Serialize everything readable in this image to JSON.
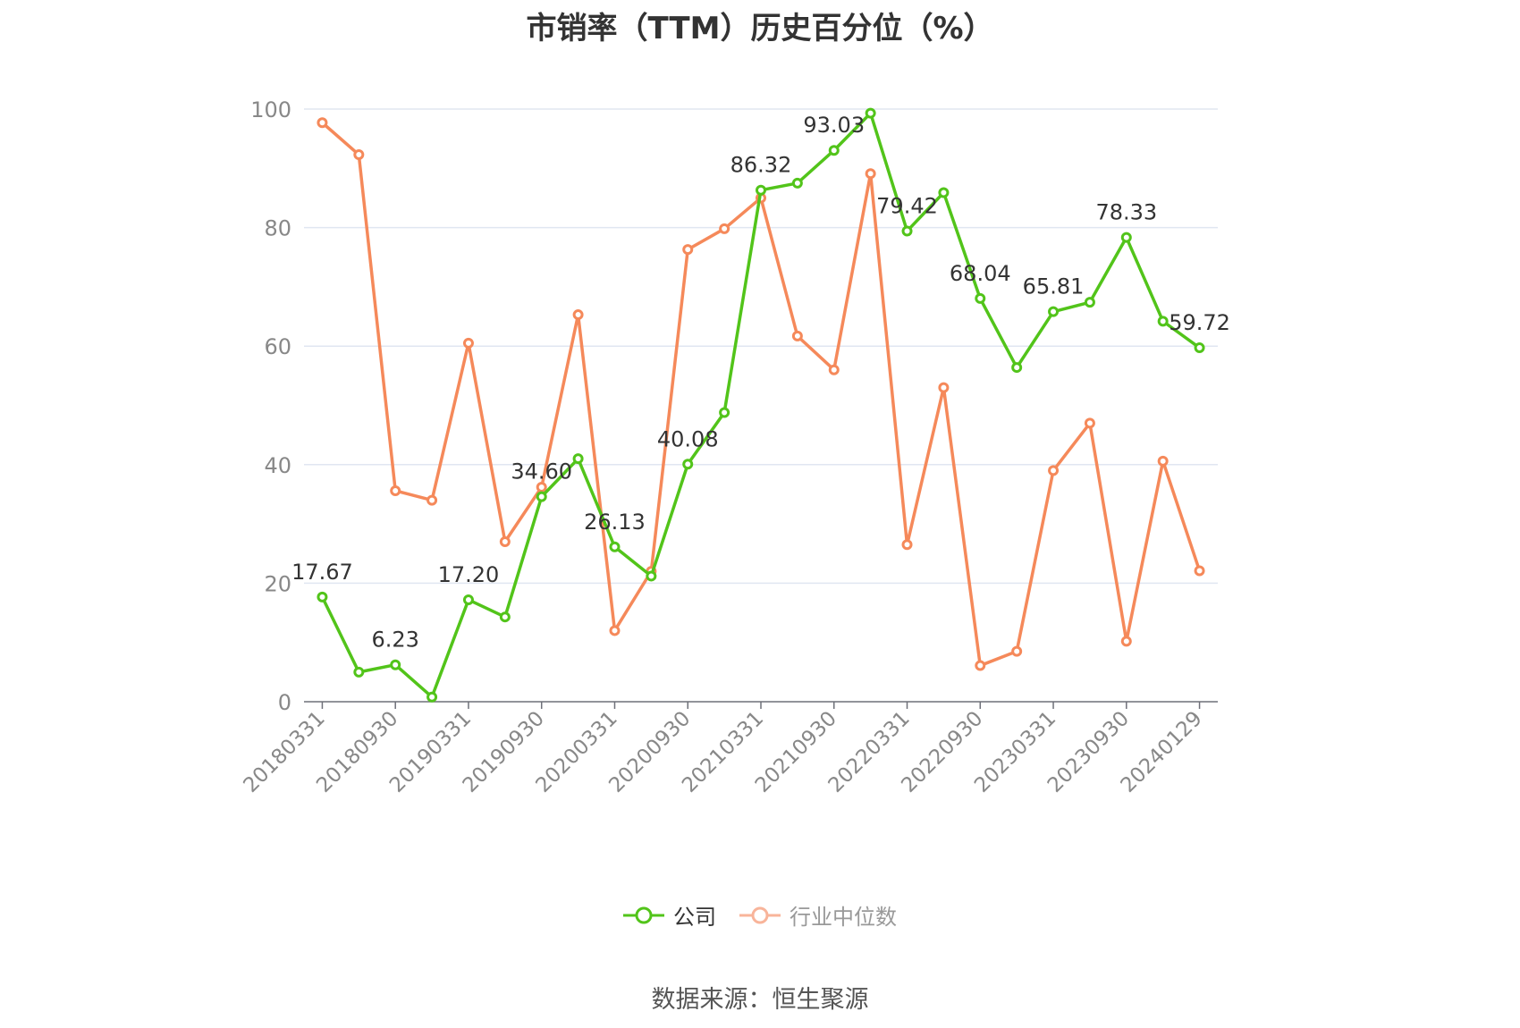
{
  "chart_data": {
    "type": "line",
    "title": "市销率（TTM）历史百分位（%）",
    "source": "数据来源：恒生聚源",
    "ylim": [
      0,
      100
    ],
    "yticks": [
      0,
      20,
      40,
      60,
      80,
      100
    ],
    "grid": true,
    "legend_position": "bottom-center",
    "x": [
      "20180331",
      "20180630",
      "20180930",
      "20181231",
      "20190331",
      "20190630",
      "20190930",
      "20191231",
      "20200331",
      "20200630",
      "20200930",
      "20201231",
      "20210331",
      "20210630",
      "20210930",
      "20211231",
      "20220331",
      "20220630",
      "20220930",
      "20221231",
      "20230331",
      "20230630",
      "20230930",
      "20231231",
      "20240129"
    ],
    "x_tick_labels": [
      "20180331",
      "20180930",
      "20190331",
      "20190930",
      "20200331",
      "20200930",
      "20210331",
      "20210930",
      "20220331",
      "20220930",
      "20230331",
      "20230930",
      "20240129"
    ],
    "series": [
      {
        "name": "公司",
        "color": "#52c41a",
        "values": [
          17.67,
          5.0,
          6.23,
          0.8,
          17.2,
          14.3,
          34.6,
          41.0,
          26.13,
          21.2,
          40.08,
          48.8,
          86.32,
          87.5,
          93.03,
          99.3,
          79.42,
          85.9,
          68.04,
          56.4,
          65.81,
          67.4,
          78.33,
          64.2,
          59.72
        ],
        "labels": [
          "17.67",
          "",
          "6.23",
          "",
          "17.20",
          "",
          "34.60",
          "",
          "26.13",
          "",
          "40.08",
          "",
          "86.32",
          "",
          "93.03",
          "",
          "79.42",
          "",
          "68.04",
          "",
          "65.81",
          "",
          "78.33",
          "",
          "59.72"
        ]
      },
      {
        "name": "行业中位数",
        "color": "#f5895a",
        "values": [
          97.7,
          92.3,
          35.6,
          34.0,
          60.5,
          27.0,
          36.2,
          65.3,
          12.0,
          22.0,
          76.3,
          79.8,
          85.0,
          61.7,
          56.0,
          89.1,
          26.5,
          53.0,
          6.1,
          8.5,
          39.0,
          47.0,
          10.2,
          40.6,
          22.1
        ]
      }
    ]
  }
}
